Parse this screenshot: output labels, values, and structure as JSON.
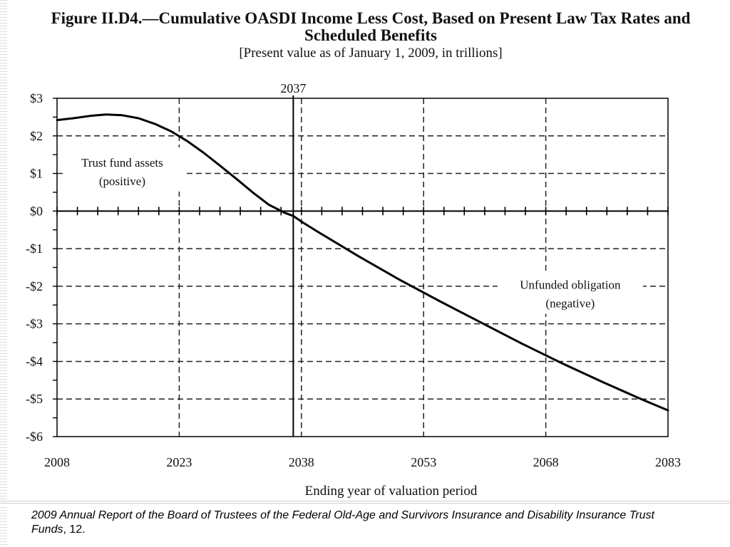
{
  "chart_data": {
    "type": "line",
    "title": "Figure II.D4.—Cumulative OASDI Income Less Cost, Based on Present Law Tax Rates and Scheduled Benefits",
    "subtitle": "[Present value as of January 1, 2009, in trillions]",
    "xlabel": "Ending year of valuation period",
    "ylabel": "",
    "xlim": [
      2008,
      2083
    ],
    "ylim": [
      -6,
      3
    ],
    "x_ticks": [
      2008,
      2023,
      2038,
      2053,
      2068,
      2083
    ],
    "y_ticks": [
      3,
      2,
      1,
      0,
      -1,
      -2,
      -3,
      -4,
      -5,
      -6
    ],
    "y_tick_labels": [
      "$3",
      "$2",
      "$1",
      "$0",
      "-$1",
      "-$2",
      "-$3",
      "-$4",
      "-$5",
      "-$6"
    ],
    "grid": true,
    "marker": {
      "x": 2037,
      "label": "2037"
    },
    "annotations": [
      {
        "lines": [
          "Trust fund assets",
          "(positive)"
        ],
        "x": 2016,
        "y": 1.05
      },
      {
        "lines": [
          "Unfunded obligation",
          "(negative)"
        ],
        "x": 2071,
        "y": -2.2
      }
    ],
    "series": [
      {
        "x": [
          2008,
          2010,
          2012,
          2014,
          2016,
          2018,
          2020,
          2022,
          2024,
          2026,
          2028,
          2030,
          2032,
          2034,
          2036,
          2037,
          2038,
          2040,
          2045,
          2050,
          2055,
          2060,
          2065,
          2070,
          2075,
          2080,
          2083
        ],
        "values": [
          2.42,
          2.47,
          2.53,
          2.57,
          2.55,
          2.47,
          2.32,
          2.12,
          1.86,
          1.55,
          1.21,
          0.86,
          0.5,
          0.17,
          -0.05,
          -0.13,
          -0.28,
          -0.55,
          -1.2,
          -1.82,
          -2.4,
          -2.96,
          -3.52,
          -4.05,
          -4.55,
          -5.03,
          -5.3
        ]
      }
    ]
  },
  "citation": {
    "text": "2009 Annual Report of the Board of Trustees of the Federal Old-Age and Survivors Insurance and Disability Insurance Trust Funds",
    "page": ", 12."
  }
}
